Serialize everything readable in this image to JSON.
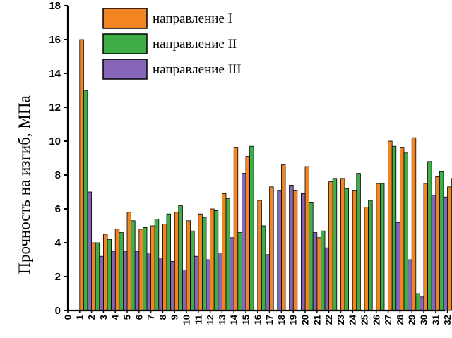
{
  "chart_data": {
    "type": "bar",
    "ylabel": "Прочность на изгиб, МПа",
    "xlabel": "",
    "ylim": [
      0,
      18
    ],
    "yticks": [
      "0",
      "2",
      "4",
      "6",
      "8",
      "10",
      "12",
      "14",
      "16",
      "18"
    ],
    "categories": [
      "0",
      "1",
      "2",
      "3",
      "4",
      "5",
      "6",
      "7",
      "8",
      "9",
      "10",
      "11",
      "12",
      "13",
      "14",
      "15",
      "16",
      "17",
      "18",
      "19",
      "20",
      "21",
      "22",
      "23",
      "24",
      "25",
      "26",
      "27",
      "28",
      "29",
      "30",
      "31",
      "32"
    ],
    "legend_position": "top-center",
    "series": [
      {
        "name": "направление I",
        "color": "#f28522",
        "values": [
          null,
          16.0,
          4.0,
          4.5,
          4.8,
          5.8,
          4.8,
          5.0,
          5.1,
          5.8,
          5.3,
          5.7,
          6.0,
          6.9,
          9.6,
          9.1,
          6.5,
          7.3,
          8.6,
          7.1,
          8.5,
          4.3,
          7.6,
          7.8,
          7.1,
          6.1,
          7.5,
          10.0,
          9.6,
          10.2,
          7.5,
          7.9,
          7.3
        ]
      },
      {
        "name": "направление II",
        "color": "#3fae49",
        "values": [
          null,
          13.0,
          4.0,
          4.2,
          4.6,
          5.3,
          4.9,
          5.4,
          5.7,
          6.2,
          4.7,
          5.5,
          5.9,
          6.6,
          4.6,
          9.7,
          5.0,
          null,
          null,
          null,
          6.4,
          4.7,
          7.8,
          7.2,
          8.1,
          6.5,
          7.5,
          9.7,
          9.3,
          1.0,
          8.8,
          8.2,
          7.8
        ]
      },
      {
        "name": "направление III",
        "color": "#8566b8",
        "values": [
          null,
          7.0,
          3.2,
          3.5,
          3.5,
          3.5,
          3.4,
          3.1,
          2.9,
          2.4,
          3.2,
          3.0,
          3.4,
          4.3,
          8.1,
          null,
          3.3,
          7.1,
          7.4,
          6.9,
          4.6,
          3.7,
          null,
          null,
          null,
          null,
          null,
          5.2,
          3.0,
          0.8,
          6.8,
          6.7,
          null
        ]
      }
    ]
  }
}
